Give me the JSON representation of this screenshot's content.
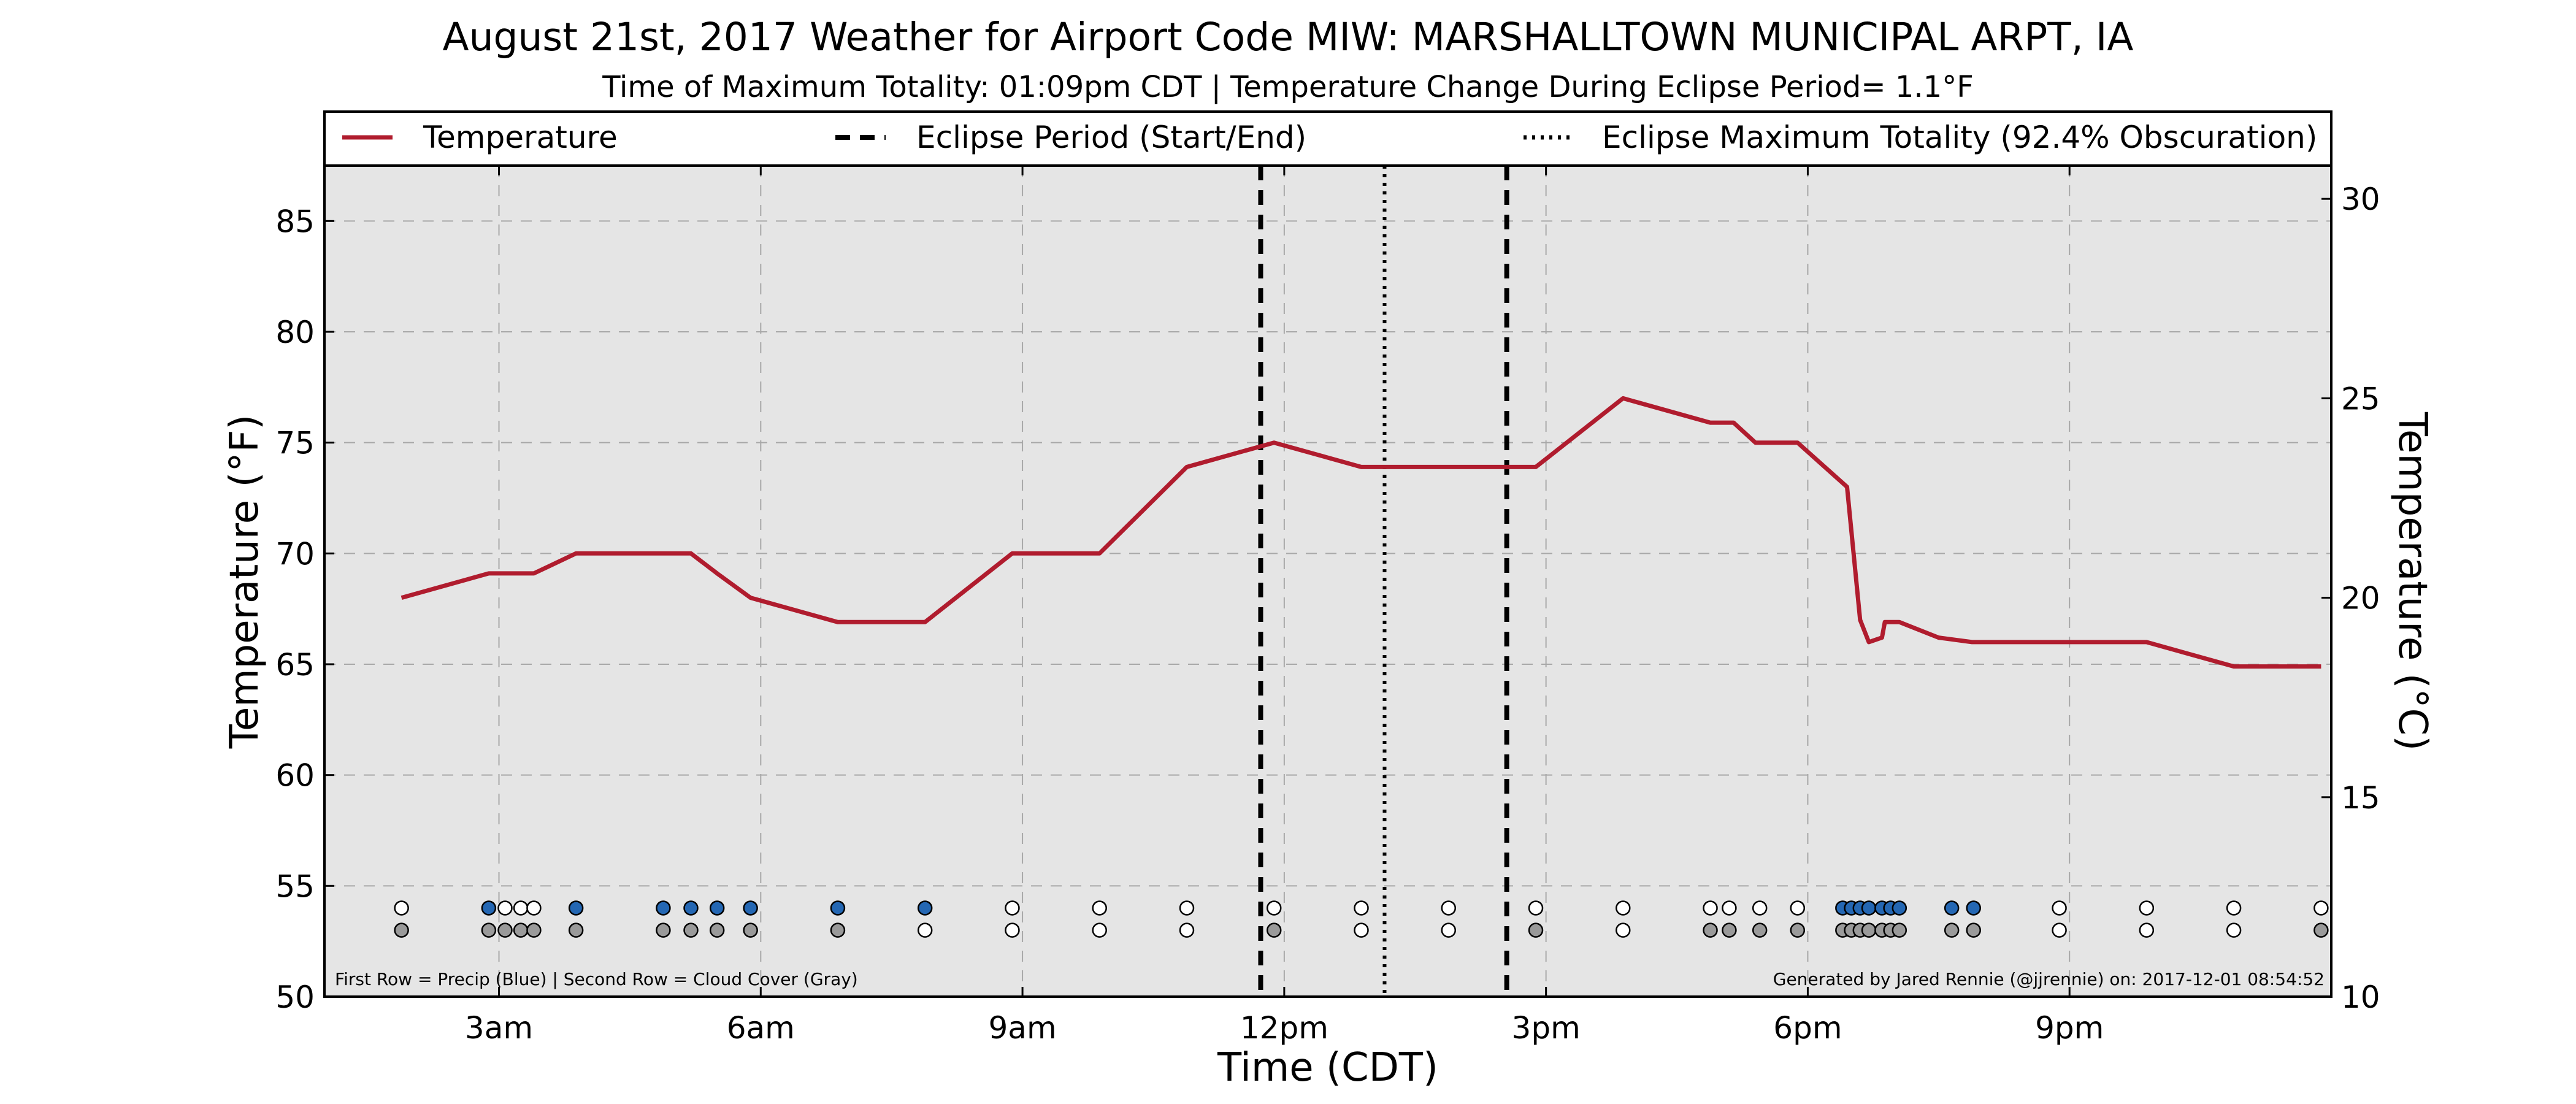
{
  "chart_data": {
    "type": "line",
    "title": "August 21st, 2017 Weather for Airport Code MIW: MARSHALLTOWN MUNICIPAL ARPT, IA",
    "subtitle": "Time of Maximum Totality: 01:09pm CDT | Temperature Change During Eclipse Period= 1.1°F",
    "xlabel": "Time (CDT)",
    "ylabel": "Temperature (°F)",
    "ylabel_right": "Temperature (°C)",
    "xlim_hours": [
      1.0,
      24.0
    ],
    "ylim": [
      50,
      87.5
    ],
    "ylim_right": [
      10,
      30.8333
    ],
    "x_ticks": [
      {
        "hour": 3,
        "label": "3am"
      },
      {
        "hour": 6,
        "label": "6am"
      },
      {
        "hour": 9,
        "label": "9am"
      },
      {
        "hour": 12,
        "label": "12pm"
      },
      {
        "hour": 15,
        "label": "3pm"
      },
      {
        "hour": 18,
        "label": "6pm"
      },
      {
        "hour": 21,
        "label": "9pm"
      }
    ],
    "y_ticks": [
      50,
      55,
      60,
      65,
      70,
      75,
      80,
      85
    ],
    "y_ticks_right": [
      10,
      15,
      20,
      25,
      30
    ],
    "grid": true,
    "legend_position": "top",
    "colors": {
      "temperature": "#b01c2e",
      "precip": "#2467b3",
      "cloud": "#9a9a9a",
      "clear": "#ffffff",
      "background": "#e5e5e5"
    },
    "series": [
      {
        "name": "Temperature",
        "hours": [
          1.883,
          2.883,
          3.4,
          3.883,
          4.883,
          5.2,
          5.5,
          5.883,
          6.883,
          7.883,
          8.883,
          9.883,
          10.883,
          11.883,
          12.883,
          13.883,
          14.883,
          15.883,
          16.883,
          17.15,
          17.4,
          17.883,
          18.45,
          18.5,
          18.6,
          18.7,
          18.85,
          18.883,
          19.05,
          19.5,
          19.883,
          20.883,
          21.883,
          22.883,
          23.883
        ],
        "values": [
          68,
          69.1,
          69.1,
          70,
          70,
          70,
          69.1,
          68,
          66.9,
          66.9,
          70,
          70,
          73.9,
          75,
          73.9,
          73.9,
          73.9,
          77,
          75.9,
          75.9,
          75,
          75,
          73,
          71,
          67,
          66,
          66.2,
          66.9,
          66.9,
          66.2,
          66,
          66,
          66,
          64.9,
          64.9
        ]
      }
    ],
    "eclipse": {
      "start_hour": 11.73,
      "max_hour": 13.15,
      "end_hour": 14.55
    },
    "precip_row_y": 54,
    "cloud_row_y": 53,
    "observations": [
      {
        "hour": 1.883,
        "precip": false,
        "cloud": true
      },
      {
        "hour": 2.883,
        "precip": true,
        "cloud": true
      },
      {
        "hour": 3.07,
        "precip": false,
        "cloud": true
      },
      {
        "hour": 3.25,
        "precip": false,
        "cloud": true
      },
      {
        "hour": 3.4,
        "precip": false,
        "cloud": true
      },
      {
        "hour": 3.883,
        "precip": true,
        "cloud": true
      },
      {
        "hour": 4.883,
        "precip": true,
        "cloud": true
      },
      {
        "hour": 5.2,
        "precip": true,
        "cloud": true
      },
      {
        "hour": 5.5,
        "precip": true,
        "cloud": true
      },
      {
        "hour": 5.883,
        "precip": true,
        "cloud": true
      },
      {
        "hour": 6.883,
        "precip": true,
        "cloud": true
      },
      {
        "hour": 7.883,
        "precip": true,
        "cloud": false
      },
      {
        "hour": 8.883,
        "precip": false,
        "cloud": false
      },
      {
        "hour": 9.883,
        "precip": false,
        "cloud": false
      },
      {
        "hour": 10.883,
        "precip": false,
        "cloud": false
      },
      {
        "hour": 11.883,
        "precip": false,
        "cloud": true
      },
      {
        "hour": 12.883,
        "precip": false,
        "cloud": false
      },
      {
        "hour": 13.883,
        "precip": false,
        "cloud": false
      },
      {
        "hour": 14.883,
        "precip": false,
        "cloud": true
      },
      {
        "hour": 15.883,
        "precip": false,
        "cloud": false
      },
      {
        "hour": 16.883,
        "precip": false,
        "cloud": true
      },
      {
        "hour": 17.1,
        "precip": false,
        "cloud": true
      },
      {
        "hour": 17.45,
        "precip": false,
        "cloud": true
      },
      {
        "hour": 17.883,
        "precip": false,
        "cloud": true
      },
      {
        "hour": 18.4,
        "precip": true,
        "cloud": true
      },
      {
        "hour": 18.5,
        "precip": true,
        "cloud": true
      },
      {
        "hour": 18.6,
        "precip": true,
        "cloud": true
      },
      {
        "hour": 18.7,
        "precip": true,
        "cloud": true
      },
      {
        "hour": 18.85,
        "precip": true,
        "cloud": true
      },
      {
        "hour": 18.95,
        "precip": true,
        "cloud": true
      },
      {
        "hour": 19.05,
        "precip": true,
        "cloud": true
      },
      {
        "hour": 19.65,
        "precip": true,
        "cloud": true
      },
      {
        "hour": 19.9,
        "precip": true,
        "cloud": true
      },
      {
        "hour": 20.883,
        "precip": false,
        "cloud": false
      },
      {
        "hour": 21.883,
        "precip": false,
        "cloud": false
      },
      {
        "hour": 22.883,
        "precip": false,
        "cloud": false
      },
      {
        "hour": 23.883,
        "precip": false,
        "cloud": true
      }
    ],
    "legend": {
      "temperature": "Temperature",
      "eclipse_period": "Eclipse Period (Start/End)",
      "eclipse_max": "Eclipse Maximum Totality (92.4% Obscuration)"
    },
    "footnote_left": "First Row = Precip (Blue) | Second Row = Cloud Cover (Gray)",
    "footnote_right": "Generated by Jared Rennie (@jjrennie) on: 2017-12-01 08:54:52"
  }
}
